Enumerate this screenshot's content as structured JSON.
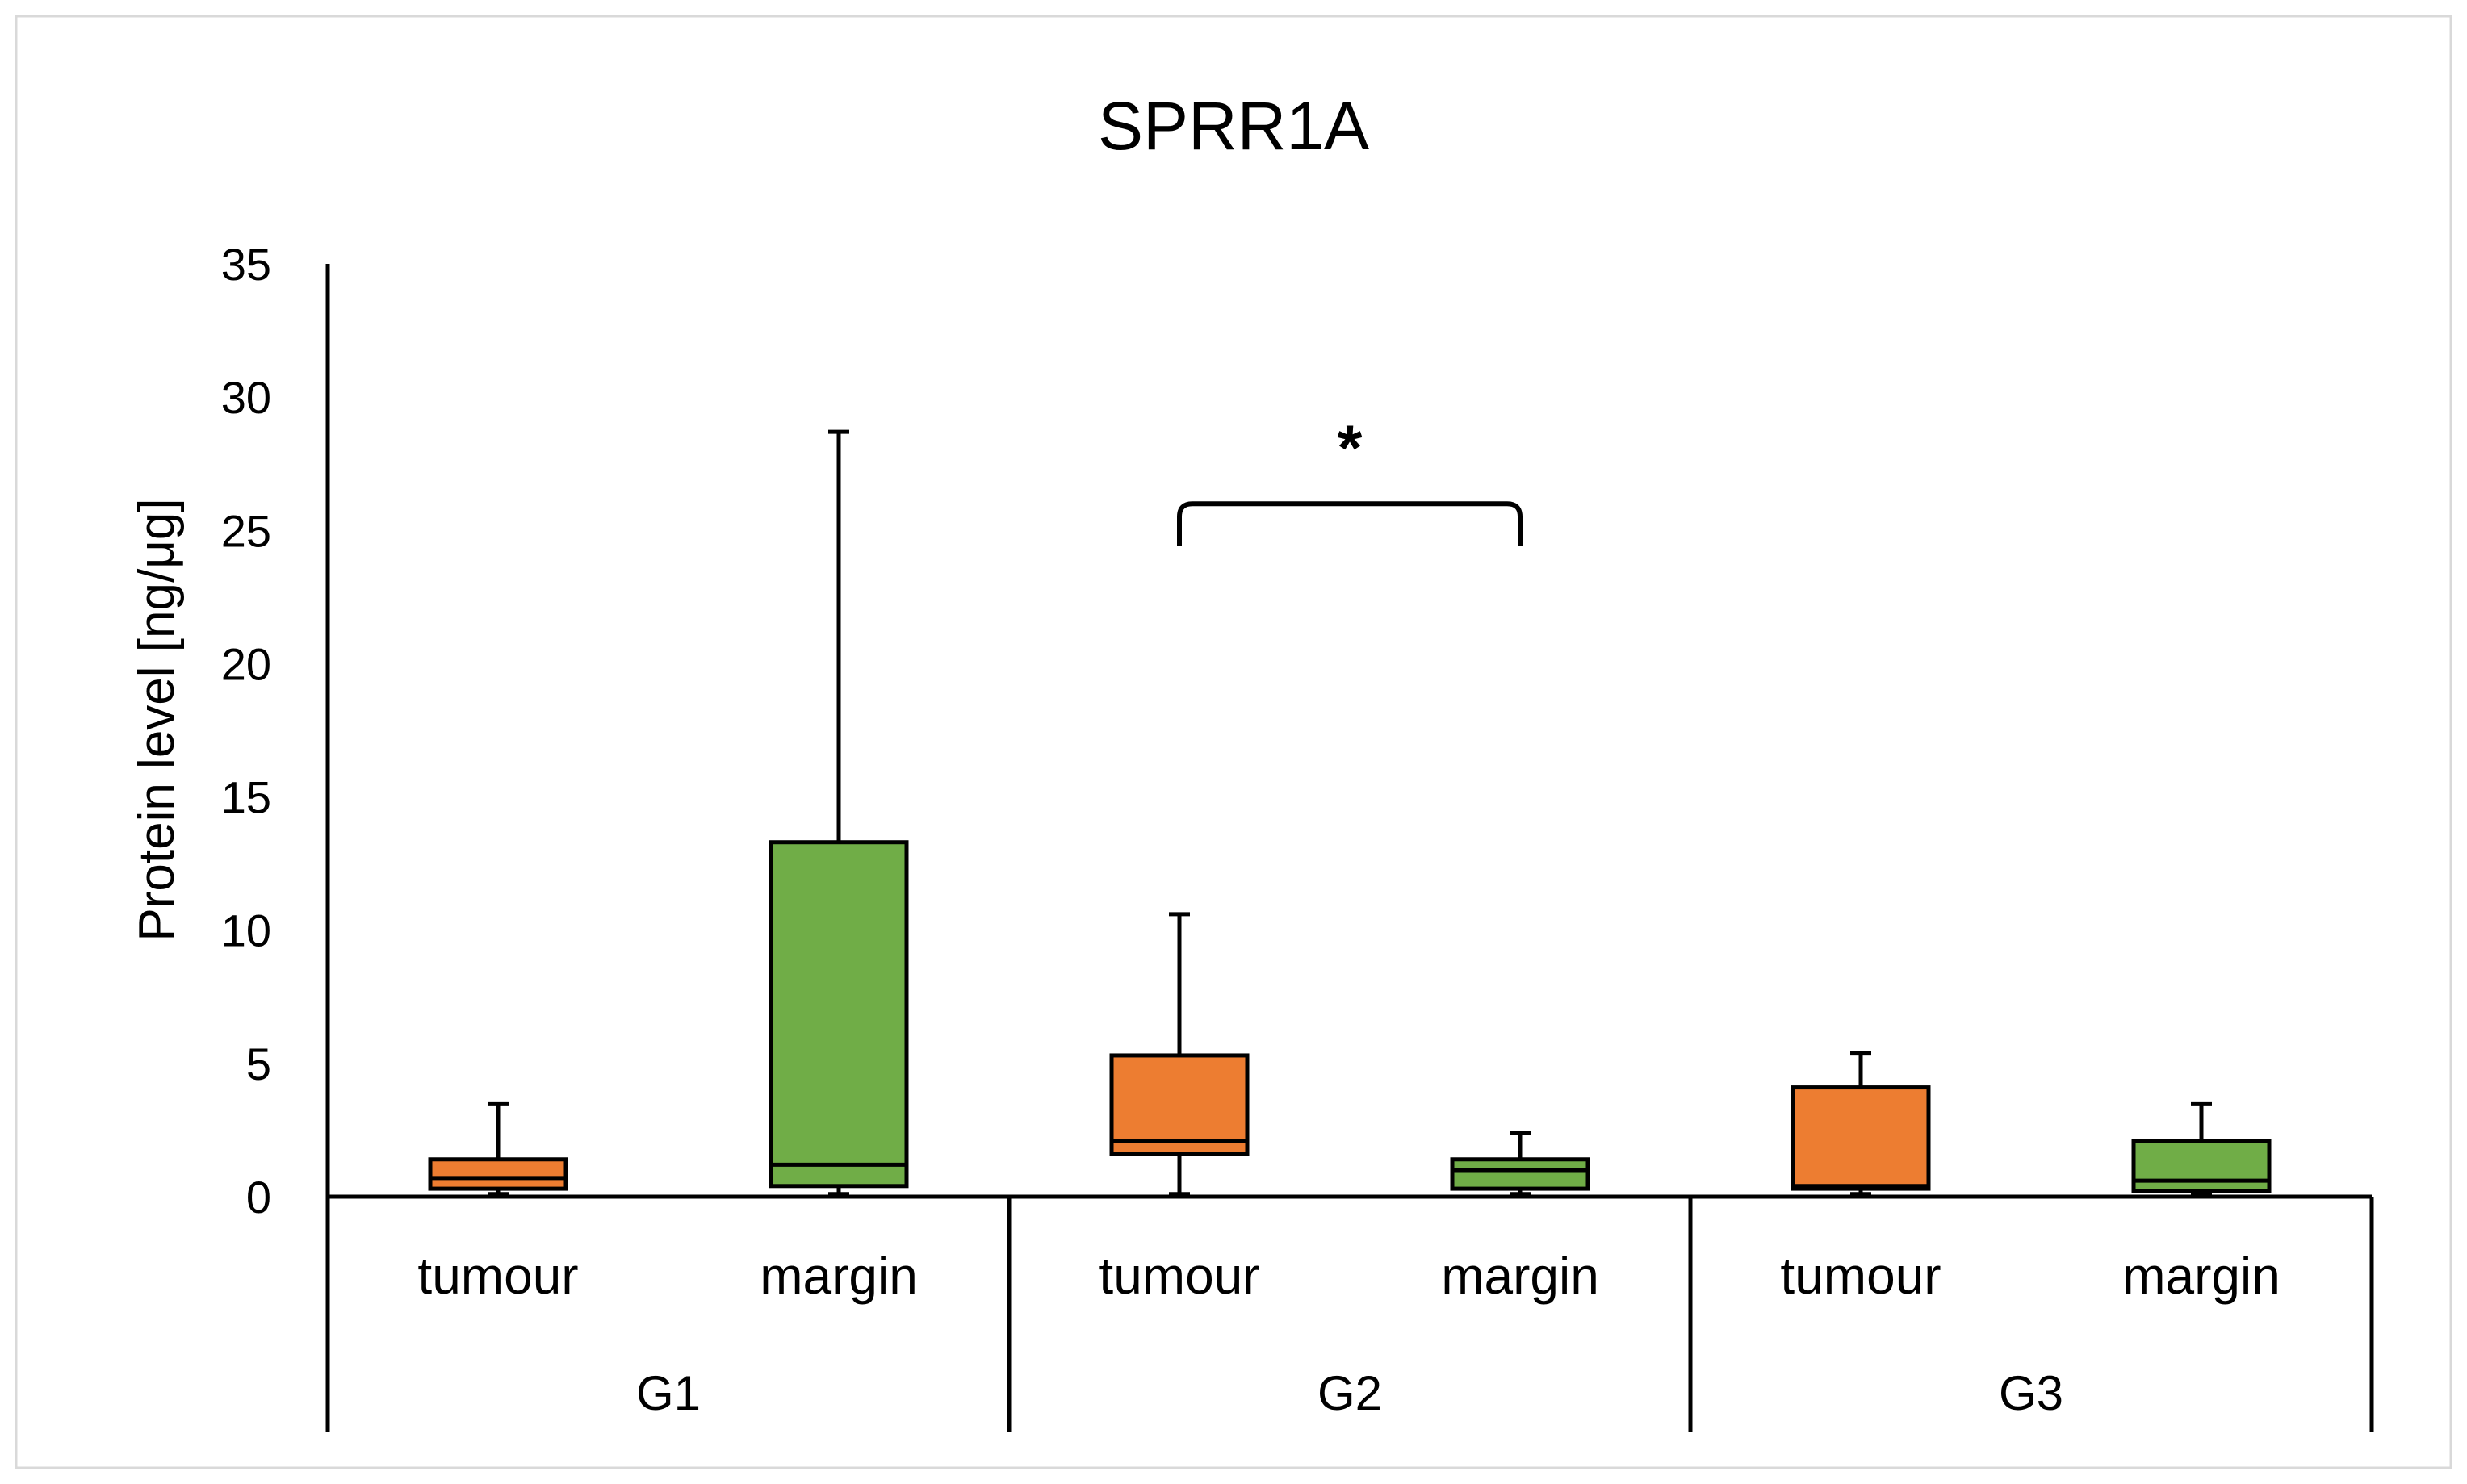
{
  "chart_data": {
    "type": "box",
    "title": "SPRR1A",
    "ylabel": "Protein level [ng/μg]",
    "xlabel": "",
    "ylim": [
      0,
      35
    ],
    "yticks": [
      0,
      5,
      10,
      15,
      20,
      25,
      30,
      35
    ],
    "grid": false,
    "legend": "none",
    "groups": [
      "G1",
      "G2",
      "G3"
    ],
    "boxes": [
      {
        "group": "G1",
        "category": "tumour",
        "color": "#ED7D31",
        "min": 0.1,
        "q1": 0.3,
        "median": 0.7,
        "q3": 1.4,
        "max": 3.5
      },
      {
        "group": "G1",
        "category": "margin",
        "color": "#70AD47",
        "min": 0.1,
        "q1": 0.4,
        "median": 1.2,
        "q3": 13.3,
        "max": 28.7
      },
      {
        "group": "G2",
        "category": "tumour",
        "color": "#ED7D31",
        "min": 0.1,
        "q1": 1.6,
        "median": 2.1,
        "q3": 5.3,
        "max": 10.6
      },
      {
        "group": "G2",
        "category": "margin",
        "color": "#70AD47",
        "min": 0.1,
        "q1": 0.3,
        "median": 1.0,
        "q3": 1.4,
        "max": 2.4
      },
      {
        "group": "G3",
        "category": "tumour",
        "color": "#ED7D31",
        "min": 0.1,
        "q1": 0.3,
        "median": 0.4,
        "q3": 4.1,
        "max": 5.4
      },
      {
        "group": "G3",
        "category": "margin",
        "color": "#70AD47",
        "min": 0.1,
        "q1": 0.2,
        "median": 0.6,
        "q3": 2.1,
        "max": 3.5
      }
    ],
    "annotations": [
      {
        "text": "*",
        "from_box": 2,
        "to_box": 3,
        "bracket_level": 26
      }
    ]
  }
}
